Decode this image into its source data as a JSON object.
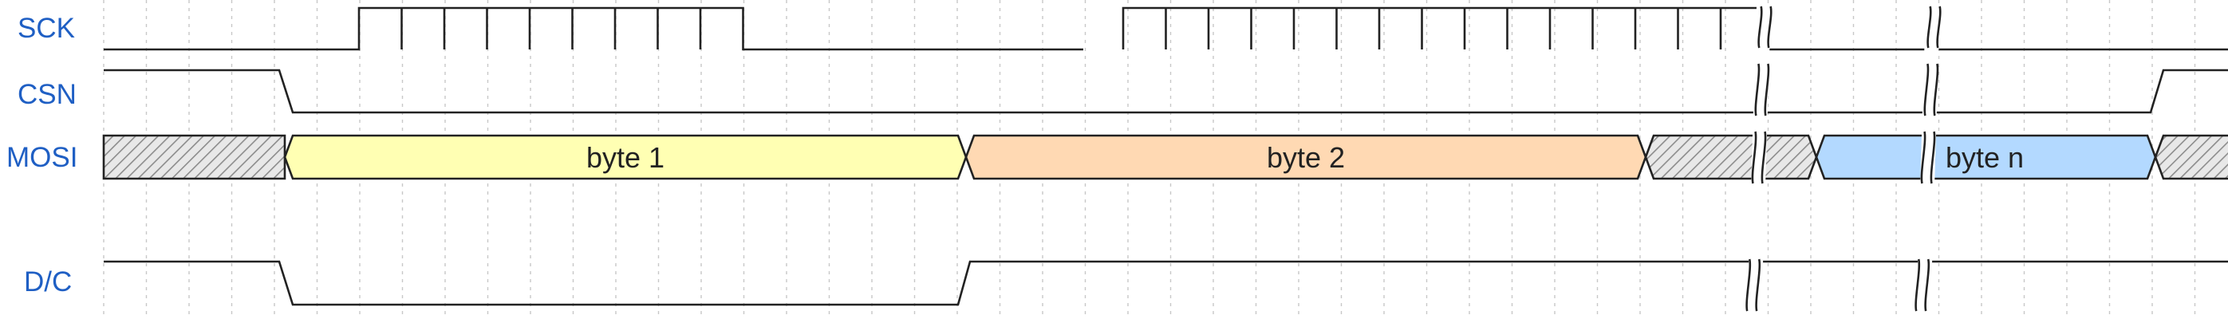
{
  "signals": [
    {
      "id": "sck",
      "label": "SCK"
    },
    {
      "id": "csn",
      "label": "CSN"
    },
    {
      "id": "mosi",
      "label": "MOSI"
    },
    {
      "id": "dc",
      "label": "D/C"
    }
  ],
  "bytes": [
    {
      "id": "byte1",
      "label": "byte 1",
      "color": "#ffffb3"
    },
    {
      "id": "byte2",
      "label": "byte 2",
      "color": "#ffd9b3"
    },
    {
      "id": "byten",
      "label": "byte n",
      "color": "#b3d9ff"
    }
  ],
  "colors": {
    "label": "#1f5fc4",
    "line": "#222222",
    "hatch_bg": "#e8e8e8",
    "hatch_line": "#8c8c8c",
    "grid": "#c8c8c8"
  },
  "time_breaks": 2
}
